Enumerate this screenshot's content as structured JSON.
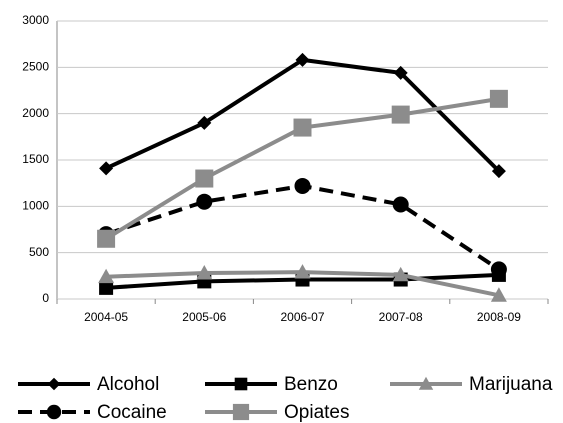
{
  "chart_data": {
    "type": "line",
    "categories": [
      "2004-05",
      "2005-06",
      "2006-07",
      "2007-08",
      "2008-09"
    ],
    "series": [
      {
        "name": "Alcohol",
        "color": "#000000",
        "dash": false,
        "marker": "diamond",
        "values": [
          1410,
          1900,
          2580,
          2440,
          1380
        ]
      },
      {
        "name": "Benzo",
        "color": "#000000",
        "dash": false,
        "marker": "square",
        "values": [
          120,
          190,
          210,
          210,
          260
        ]
      },
      {
        "name": "Marijuana",
        "color": "#8c8c8c",
        "dash": false,
        "marker": "triangle",
        "values": [
          240,
          280,
          290,
          260,
          40
        ]
      },
      {
        "name": "Cocaine",
        "color": "#000000",
        "dash": true,
        "marker": "circle",
        "values": [
          700,
          1050,
          1220,
          1020,
          320
        ]
      },
      {
        "name": "Opiates",
        "color": "#8c8c8c",
        "dash": false,
        "marker": "square",
        "values": [
          650,
          1300,
          1850,
          1990,
          2160
        ]
      }
    ],
    "ylim": [
      0,
      3000
    ],
    "yticks": [
      0,
      500,
      1000,
      1500,
      2000,
      2500,
      3000
    ],
    "grid": true
  }
}
